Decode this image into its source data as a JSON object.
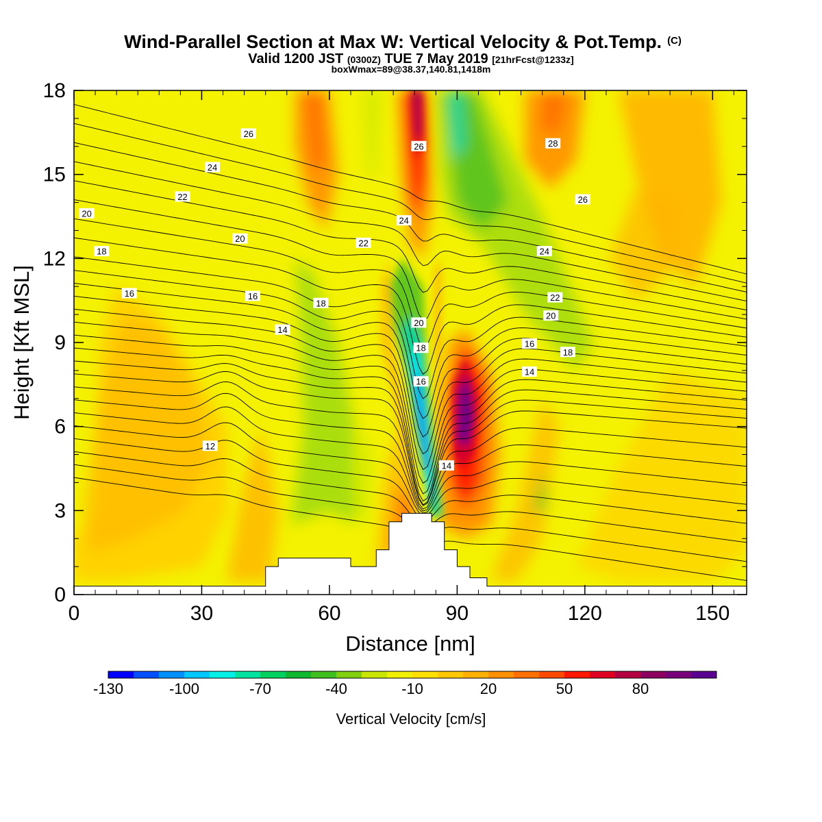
{
  "chart_data": {
    "type": "heatmap",
    "title": "Wind-Parallel Section at Max W: Vertical Velocity & Pot.Temp.",
    "title_mark": "(C)",
    "subtitle": {
      "valid": "Valid 1200 JST",
      "utc": "(0300Z)",
      "date": "TUE 7 May 2019",
      "fcst": "[21hrFcst@1233z]"
    },
    "subtitle2": "boxWmax=89@38.37,140.81,1418m",
    "xlabel": "Distance [nm]",
    "ylabel": "Height [Kft MSL]",
    "xlim": [
      0,
      158
    ],
    "ylim": [
      0,
      18
    ],
    "x_ticks": [
      "0",
      "30",
      "60",
      "90",
      "120",
      "150"
    ],
    "y_ticks": [
      "0",
      "3",
      "6",
      "9",
      "12",
      "15",
      "18"
    ],
    "colorbar": {
      "label": "Vertical Velocity [cm/s]",
      "tick_labels": [
        "-130",
        "-100",
        "-70",
        "-40",
        "-10",
        "20",
        "50",
        "80"
      ],
      "colors": [
        "#0000ff",
        "#0050ff",
        "#0090ff",
        "#00c8ff",
        "#00f0e8",
        "#00e4a0",
        "#00d060",
        "#10b830",
        "#40c020",
        "#80d010",
        "#c8e600",
        "#f0f000",
        "#ffe000",
        "#ffc800",
        "#ffb000",
        "#ff9000",
        "#ff7000",
        "#ff4800",
        "#ff1800",
        "#e00020",
        "#b40040",
        "#8c0060",
        "#780078",
        "#5a0090"
      ]
    },
    "terrain_kft": [
      {
        "x": 0,
        "h": 0.3
      },
      {
        "x": 45,
        "h": 0.3
      },
      {
        "x": 45,
        "h": 1.0
      },
      {
        "x": 48,
        "h": 1.0
      },
      {
        "x": 48,
        "h": 1.3
      },
      {
        "x": 65,
        "h": 1.3
      },
      {
        "x": 65,
        "h": 1.0
      },
      {
        "x": 71,
        "h": 1.0
      },
      {
        "x": 71,
        "h": 1.6
      },
      {
        "x": 74,
        "h": 1.6
      },
      {
        "x": 74,
        "h": 2.6
      },
      {
        "x": 77,
        "h": 2.6
      },
      {
        "x": 77,
        "h": 2.9
      },
      {
        "x": 84,
        "h": 2.9
      },
      {
        "x": 84,
        "h": 2.6
      },
      {
        "x": 87,
        "h": 2.6
      },
      {
        "x": 87,
        "h": 1.6
      },
      {
        "x": 90,
        "h": 1.6
      },
      {
        "x": 90,
        "h": 1.0
      },
      {
        "x": 93,
        "h": 1.0
      },
      {
        "x": 93,
        "h": 0.6
      },
      {
        "x": 97,
        "h": 0.6
      },
      {
        "x": 97,
        "h": 0.3
      },
      {
        "x": 158,
        "h": 0.3
      }
    ],
    "theta_contour_labels": [
      {
        "text": "12",
        "x": 32,
        "y": 5.3
      },
      {
        "text": "14",
        "x": 49,
        "y": 9.45
      },
      {
        "text": "14",
        "x": 87.5,
        "y": 4.6
      },
      {
        "text": "14",
        "x": 107,
        "y": 7.95
      },
      {
        "text": "16",
        "x": 13,
        "y": 10.75
      },
      {
        "text": "16",
        "x": 42,
        "y": 10.65
      },
      {
        "text": "16",
        "x": 81.5,
        "y": 7.6
      },
      {
        "text": "16",
        "x": 107,
        "y": 8.95
      },
      {
        "text": "18",
        "x": 6.5,
        "y": 12.25
      },
      {
        "text": "18",
        "x": 58,
        "y": 10.4
      },
      {
        "text": "18",
        "x": 81.5,
        "y": 8.8
      },
      {
        "text": "18",
        "x": 116,
        "y": 8.65
      },
      {
        "text": "20",
        "x": 3,
        "y": 13.6
      },
      {
        "text": "20",
        "x": 39,
        "y": 12.7
      },
      {
        "text": "20",
        "x": 81,
        "y": 9.7
      },
      {
        "text": "20",
        "x": 112,
        "y": 9.95
      },
      {
        "text": "22",
        "x": 25.5,
        "y": 14.2
      },
      {
        "text": "22",
        "x": 68,
        "y": 12.55
      },
      {
        "text": "22",
        "x": 113,
        "y": 10.6
      },
      {
        "text": "24",
        "x": 32.5,
        "y": 15.25
      },
      {
        "text": "24",
        "x": 77.5,
        "y": 13.35
      },
      {
        "text": "24",
        "x": 110.5,
        "y": 12.25
      },
      {
        "text": "26",
        "x": 41,
        "y": 16.45
      },
      {
        "text": "26",
        "x": 81,
        "y": 16.0
      },
      {
        "text": "26",
        "x": 119.5,
        "y": 14.1
      },
      {
        "text": "28",
        "x": 112.5,
        "y": 16.1
      }
    ]
  }
}
